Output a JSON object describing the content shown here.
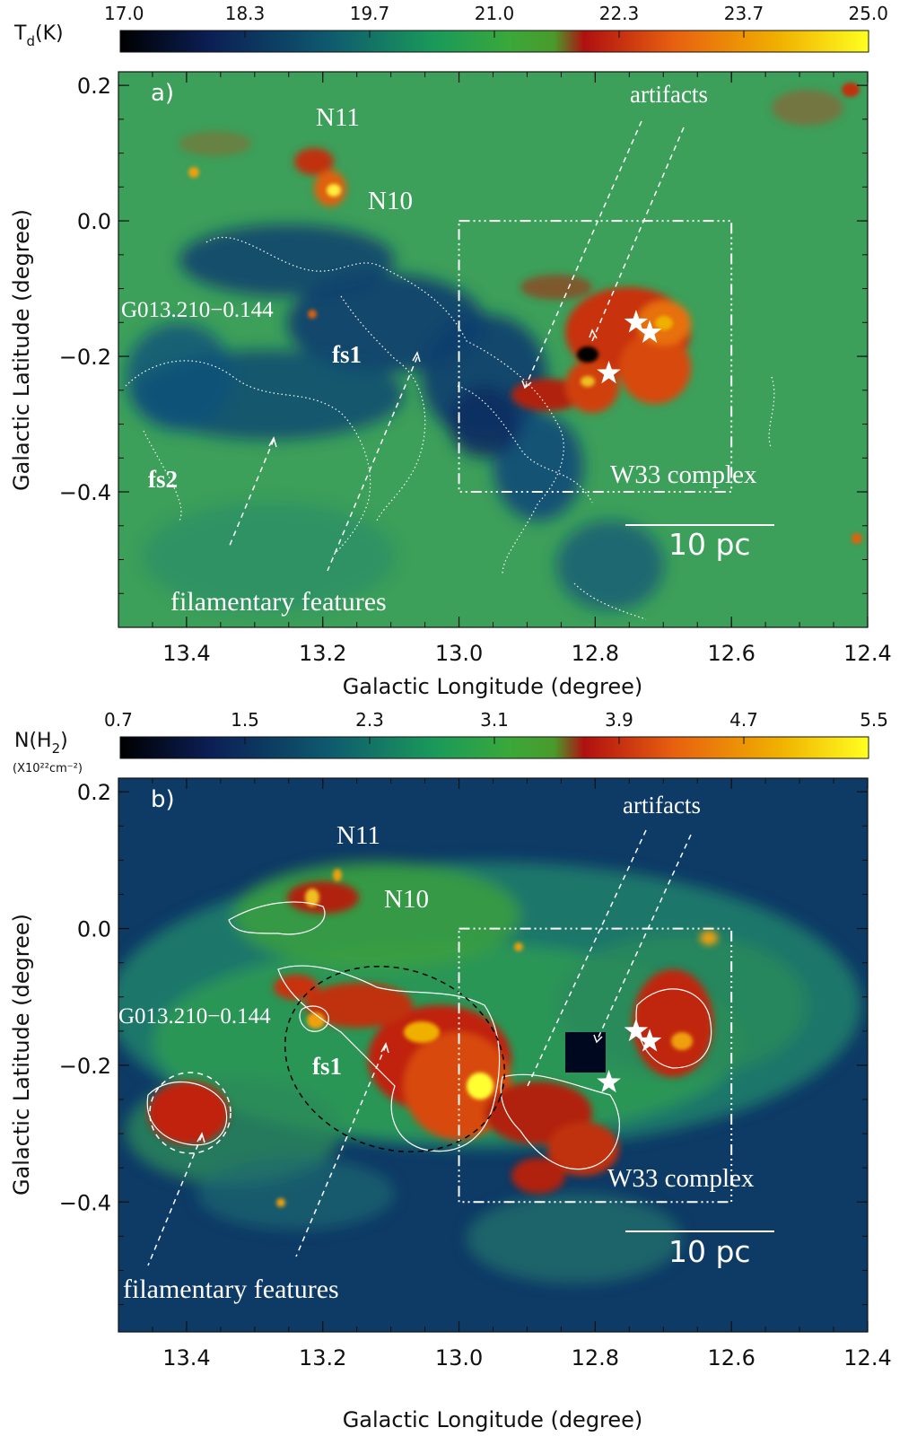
{
  "chart_data": [
    {
      "type": "heatmap",
      "panel": "a)",
      "colorbar": {
        "label_main": "T",
        "label_sub": "d",
        "label_unit": "(K)",
        "ticks": [
          "17.0",
          "18.3",
          "19.7",
          "21.0",
          "22.3",
          "23.7",
          "25.0"
        ],
        "range": [
          17.0,
          25.0
        ]
      },
      "xlabel": "Galactic Longitude (degree)",
      "ylabel": "Galactic Latitude (degree)",
      "xticks": [
        "13.4",
        "13.2",
        "13.0",
        "12.8",
        "12.6",
        "12.4"
      ],
      "yticks": [
        "0.2",
        "0.0",
        "−0.2",
        "−0.4"
      ],
      "xlim": [
        13.5,
        12.4
      ],
      "ylim": [
        -0.6,
        0.22
      ],
      "annotations": {
        "artifacts": "artifacts",
        "n11": "N11",
        "n10": "N10",
        "g013": "G013.210−0.144",
        "fs1": "fs1",
        "fs2": "fs2",
        "w33": "W33 complex",
        "scale": "10 pc",
        "filamentary": "filamentary features"
      },
      "stars": [
        {
          "l": 12.74,
          "b": -0.15
        },
        {
          "l": 12.72,
          "b": -0.165
        },
        {
          "l": 12.78,
          "b": -0.225
        }
      ],
      "w33_box": {
        "l": [
          13.0,
          12.6
        ],
        "b": [
          -0.4,
          0.0
        ]
      }
    },
    {
      "type": "heatmap",
      "panel": "b)",
      "colorbar": {
        "label_main": "N(H",
        "label_sub": "2",
        "label_unit": ")",
        "unit_line": "(X10²²cm⁻²)",
        "ticks": [
          "0.7",
          "1.5",
          "2.3",
          "3.1",
          "3.9",
          "4.7",
          "5.5"
        ],
        "range": [
          0.7,
          5.5
        ]
      },
      "xlabel": "Galactic Longitude (degree)",
      "ylabel": "Galactic Latitude (degree)",
      "xticks": [
        "13.4",
        "13.2",
        "13.0",
        "12.8",
        "12.6",
        "12.4"
      ],
      "yticks": [
        "0.2",
        "0.0",
        "−0.2",
        "−0.4"
      ],
      "xlim": [
        13.5,
        12.4
      ],
      "ylim": [
        -0.59,
        0.22
      ],
      "annotations": {
        "artifacts": "artifacts",
        "n11": "N11",
        "n10": "N10",
        "g013": "G013.210−0.144",
        "fs1": "fs1",
        "w33": "W33 complex",
        "scale": "10 pc",
        "filamentary": "filamentary features"
      },
      "stars": [
        {
          "l": 12.74,
          "b": -0.15
        },
        {
          "l": 12.72,
          "b": -0.165
        },
        {
          "l": 12.78,
          "b": -0.225
        }
      ],
      "w33_box": {
        "l": [
          13.0,
          12.6
        ],
        "b": [
          -0.4,
          0.0
        ]
      }
    }
  ],
  "colors": {
    "colormap": [
      "#000000",
      "#0b1f55",
      "#0e5a6e",
      "#1a9a5a",
      "#3aa83a",
      "#4a9a2a",
      "#b01010",
      "#e86010",
      "#f0b000",
      "#ffff20"
    ]
  }
}
